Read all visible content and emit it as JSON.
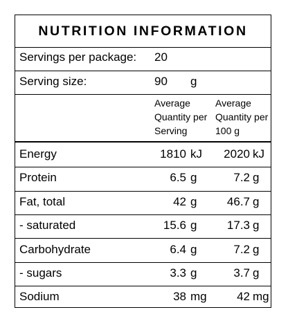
{
  "title": "NUTRITION INFORMATION",
  "servings": {
    "label": "Servings per package:",
    "value": "20"
  },
  "serving_size": {
    "label": "Serving size:",
    "value": "90",
    "unit": "g"
  },
  "columns": {
    "per_serving": [
      "Average",
      "Quantity per",
      "Serving"
    ],
    "per_100g": [
      "Average",
      "Quantity per",
      "100 g"
    ]
  },
  "rows": [
    {
      "name": "Energy",
      "serving": "1810",
      "serving_unit": "kJ",
      "per100": "2020",
      "per100_unit": "kJ"
    },
    {
      "name": "Protein",
      "serving": "6.5",
      "serving_unit": "g",
      "per100": "7.2",
      "per100_unit": "g"
    },
    {
      "name": "Fat, total",
      "serving": "42",
      "serving_unit": "g",
      "per100": "46.7",
      "per100_unit": "g"
    },
    {
      "name": "- saturated",
      "serving": "15.6",
      "serving_unit": "g",
      "per100": "17.3",
      "per100_unit": "g"
    },
    {
      "name": "Carbohydrate",
      "serving": "6.4",
      "serving_unit": "g",
      "per100": "7.2",
      "per100_unit": "g"
    },
    {
      "name": "- sugars",
      "serving": "3.3",
      "serving_unit": "g",
      "per100": "3.7",
      "per100_unit": "g"
    },
    {
      "name": "Sodium",
      "serving": "38",
      "serving_unit": "mg",
      "per100": "42",
      "per100_unit": "mg"
    }
  ]
}
